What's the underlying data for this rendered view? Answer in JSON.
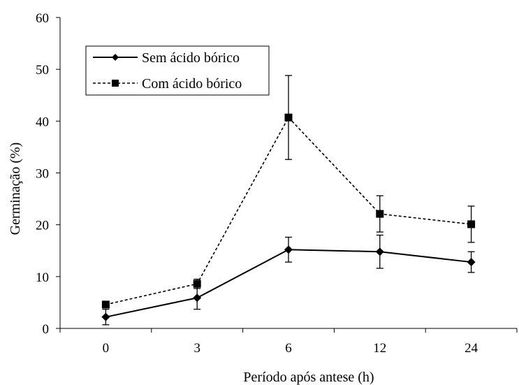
{
  "chart_data": {
    "type": "line",
    "categories": [
      "0",
      "3",
      "6",
      "12",
      "24"
    ],
    "xlabel": "Período após antese (h)",
    "ylabel": "Germinação (%)",
    "ylim": [
      0,
      60
    ],
    "yticks": [
      0,
      10,
      20,
      30,
      40,
      50,
      60
    ],
    "grid": false,
    "legend": {
      "placement": "top-left",
      "entries": [
        "Sem ácido bórico",
        "Com ácido bórico"
      ]
    },
    "series": [
      {
        "name": "Sem ácido bórico",
        "marker": "diamond",
        "line_style": "solid",
        "values": [
          2.2,
          5.9,
          15.2,
          14.8,
          12.8
        ],
        "error": [
          1.5,
          2.2,
          2.4,
          3.2,
          2.0
        ]
      },
      {
        "name": "Com ácido bórico",
        "marker": "square",
        "line_style": "dashed",
        "values": [
          4.6,
          8.6,
          40.7,
          22.1,
          20.1
        ],
        "error": [
          0.5,
          0.9,
          8.1,
          3.5,
          3.5
        ]
      }
    ]
  }
}
